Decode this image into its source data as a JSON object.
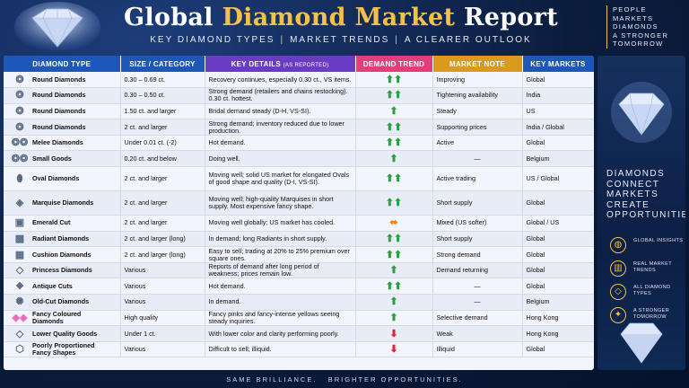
{
  "title": {
    "part1": "Global",
    "part2": "Diamond Market",
    "part3": "Report"
  },
  "subtitle": [
    "KEY DIAMOND TYPES",
    "MARKET TRENDS",
    "A CLEARER OUTLOOK"
  ],
  "tagline": [
    "PEOPLE",
    "MARKETS",
    "DIAMONDS",
    "A STRONGER",
    "TOMORROW"
  ],
  "columns": {
    "type": "DIAMOND TYPE",
    "size": "SIZE / CATEGORY",
    "details": "KEY DETAILS",
    "details_note": "(AS REPORTED)",
    "trend": "DEMAND TREND",
    "note": "MARKET NOTE",
    "markets": "KEY MARKETS"
  },
  "header_colors": {
    "type": "#1d57b8",
    "size": "#1d57b8",
    "details": "#6a3bc4",
    "trend": "#e23f78",
    "note": "#d99a1e",
    "markets": "#1d57b8"
  },
  "rows": [
    {
      "type": "Round Diamonds",
      "size": "0.30 – 0.69 ct.",
      "details": "Recovery continues, especially 0.30 ct., VS items.",
      "trend": "up2",
      "note": "Improving",
      "markets": "Global",
      "icon": "round-diamond-icon"
    },
    {
      "type": "Round Diamonds",
      "size": "0.30 – 0.50 ct.",
      "details": "Strong demand (retailers and chains restocking). 0.30 ct. hottest.",
      "trend": "up2",
      "note": "Tightening availability",
      "markets": "India",
      "icon": "round-diamond-icon"
    },
    {
      "type": "Round Diamonds",
      "size": "1.50 ct. and larger",
      "details": "Bridal demand steady (D-H, VS-SI).",
      "trend": "up1",
      "note": "Steady",
      "markets": "US",
      "icon": "round-diamond-icon"
    },
    {
      "type": "Round Diamonds",
      "size": "2 ct. and larger",
      "details": "Strong demand; inventory reduced due to lower production.",
      "trend": "up2",
      "note": "Supporting prices",
      "markets": "India / Global",
      "icon": "round-diamond-icon"
    },
    {
      "type": "Melee Diamonds",
      "size": "Under 0.01 ct. (-2)",
      "details": "Hot demand.",
      "trend": "up2",
      "note": "Active",
      "markets": "Global",
      "icon": "melee-diamond-icon"
    },
    {
      "type": "Small Goods",
      "size": "0.20 ct. and below",
      "details": "Doing well.",
      "trend": "up1",
      "note": "—",
      "markets": "Belgium",
      "icon": "small-goods-icon"
    },
    {
      "type": "Oval Diamonds",
      "size": "2 ct. and larger",
      "details": "Moving well; solid US market for elongated Ovals of good shape and quality (D-I, VS-SI).",
      "trend": "up2",
      "note": "Active trading",
      "markets": "US / Global",
      "icon": "oval-diamond-icon"
    },
    {
      "type": "Marquise Diamonds",
      "size": "2 ct. and larger",
      "details": "Moving well; high-quality Marquises in short supply. Most expensive fancy shape.",
      "trend": "up2",
      "note": "Short supply",
      "markets": "Global",
      "icon": "marquise-diamond-icon"
    },
    {
      "type": "Emerald Cut",
      "size": "2 ct. and larger",
      "details": "Moving well globally; US market has cooled.",
      "trend": "side",
      "note": "Mixed (US softer)",
      "markets": "Global / US",
      "icon": "emerald-cut-icon"
    },
    {
      "type": "Radiant Diamonds",
      "size": "2 ct. and larger (long)",
      "details": "In demand; long Radiants in short supply.",
      "trend": "up2",
      "note": "Short supply",
      "markets": "Global",
      "icon": "radiant-diamond-icon"
    },
    {
      "type": "Cushion Diamonds",
      "size": "2 ct. and larger (long)",
      "details": "Easy to sell; trading at 20% to 25% premium over square ones.",
      "trend": "up2",
      "note": "Strong demand",
      "markets": "Global",
      "icon": "cushion-diamond-icon"
    },
    {
      "type": "Princess Diamonds",
      "size": "Various",
      "details": "Reports of demand after long period of weakness; prices remain low.",
      "trend": "up1",
      "note": "Demand returning",
      "markets": "Global",
      "icon": "princess-diamond-icon"
    },
    {
      "type": "Antique Cuts",
      "size": "Various",
      "details": "Hot demand.",
      "trend": "up2",
      "note": "—",
      "markets": "Global",
      "icon": "antique-cut-icon"
    },
    {
      "type": "Old-Cut Diamonds",
      "size": "Various",
      "details": "In demand.",
      "trend": "up1",
      "note": "—",
      "markets": "Belgium",
      "icon": "old-cut-diamond-icon"
    },
    {
      "type": "Fancy Coloured Diamonds",
      "size": "High quality",
      "details": "Fancy pinks and fancy-intense yellows seeing steady inquiries.",
      "trend": "up1",
      "note": "Selective demand",
      "markets": "Hong Kong",
      "icon": "fancy-coloured-diamond-icon"
    },
    {
      "type": "Lower Quality Goods",
      "size": "Under 1 ct.",
      "details": "With lower color and clarity performing poorly.",
      "trend": "down",
      "note": "Weak",
      "markets": "Hong Kong",
      "icon": "lower-quality-icon"
    },
    {
      "type": "Poorly Proportioned Fancy Shapes",
      "size": "Various",
      "details": "Difficult to sell; illiquid.",
      "trend": "down",
      "note": "Illiquid",
      "markets": "Global",
      "icon": "poor-fancy-shape-icon"
    }
  ],
  "right_panel": {
    "slogan": [
      "DIAMONDS",
      "CONNECT",
      "MARKETS",
      "CREATE",
      "OPPORTUNITIES"
    ],
    "features": [
      {
        "label": "GLOBAL INSIGHTS",
        "icon": "globe-icon"
      },
      {
        "label": "REAL MARKET TRENDS",
        "icon": "bar-chart-icon"
      },
      {
        "label": "ALL DIAMOND TYPES",
        "icon": "diamond-icon"
      },
      {
        "label": "A STRONGER TOMORROW",
        "icon": "handshake-icon"
      }
    ]
  },
  "footer": [
    "SAME BRILLIANCE.",
    "BRIGHTER OPPORTUNITIES."
  ]
}
